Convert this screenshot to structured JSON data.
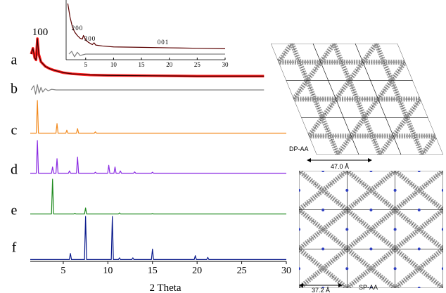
{
  "chart_data": {
    "type": "line",
    "xlabel": "2 Theta",
    "xlim": [
      1.3,
      30
    ],
    "xticks": [
      5,
      10,
      15,
      20,
      25,
      30
    ],
    "annotations": [
      "100"
    ],
    "series": [
      {
        "name": "a",
        "color": "#3a0000",
        "outline_color": "#ff2020",
        "x": [
          1.4,
          1.6,
          1.8,
          1.95,
          2.1,
          2.25,
          2.5,
          3,
          3.5,
          4,
          5,
          6,
          8,
          10,
          15,
          20,
          27.5
        ],
        "values": [
          60,
          75,
          50,
          45,
          100,
          60,
          40,
          28,
          22,
          18,
          12,
          9,
          6,
          5,
          4,
          3,
          3
        ]
      },
      {
        "name": "b",
        "color": "#808080",
        "x": [
          1.4,
          1.7,
          1.9,
          2.1,
          2.3,
          2.5,
          2.7,
          3,
          3.3,
          3.7,
          4.2,
          27.5
        ],
        "values": [
          0,
          20,
          -20,
          25,
          -15,
          12,
          -10,
          6,
          -4,
          3,
          0,
          0
        ]
      },
      {
        "name": "c",
        "color": "#f28a1e",
        "x": [
          1.3,
          1.98,
          2.1,
          2.22,
          4.18,
          4.3,
          4.42,
          5.28,
          5.4,
          5.52,
          6.48,
          6.6,
          6.72,
          8.48,
          8.6,
          8.72,
          30
        ],
        "values": [
          1,
          1,
          100,
          1,
          1,
          30,
          1,
          1,
          10,
          1,
          1,
          15,
          1,
          1,
          5,
          1,
          1
        ]
      },
      {
        "name": "d",
        "color": "#8a2be2",
        "x": [
          1.3,
          1.98,
          2.1,
          2.22,
          3.68,
          3.8,
          3.92,
          4.18,
          4.3,
          4.42,
          5.58,
          5.7,
          5.82,
          6.48,
          6.6,
          6.72,
          8.48,
          8.6,
          8.72,
          9.98,
          10.1,
          10.22,
          10.68,
          10.8,
          10.92,
          11.28,
          11.4,
          11.52,
          12.88,
          13,
          13.12,
          14.88,
          15,
          15.12,
          30
        ],
        "values": [
          1,
          1,
          100,
          1,
          1,
          20,
          1,
          1,
          45,
          1,
          1,
          8,
          1,
          1,
          50,
          1,
          1,
          4,
          1,
          1,
          25,
          1,
          1,
          20,
          1,
          1,
          8,
          1,
          1,
          5,
          1,
          1,
          4,
          1,
          1
        ]
      },
      {
        "name": "e",
        "color": "#1f8a1f",
        "x": [
          1.3,
          3.68,
          3.8,
          3.92,
          6.18,
          6.3,
          6.42,
          7.38,
          7.5,
          7.62,
          11.18,
          11.3,
          11.42,
          14.88,
          15,
          15.12,
          30
        ],
        "values": [
          1,
          1,
          100,
          1,
          1,
          3,
          1,
          1,
          18,
          1,
          1,
          4,
          1,
          1,
          2,
          1,
          1
        ]
      },
      {
        "name": "f",
        "color": "#0a1a8c",
        "x": [
          1.3,
          5.68,
          5.8,
          5.92,
          7.38,
          7.5,
          7.62,
          10.38,
          10.5,
          10.62,
          11.18,
          11.3,
          11.42,
          12.68,
          12.8,
          12.92,
          14.88,
          15,
          15.12,
          19.68,
          19.8,
          19.92,
          21.08,
          21.2,
          21.32,
          30
        ],
        "values": [
          1,
          1,
          15,
          1,
          1,
          100,
          1,
          1,
          100,
          1,
          1,
          5,
          1,
          1,
          5,
          1,
          1,
          25,
          1,
          1,
          10,
          1,
          1,
          6,
          1,
          1
        ]
      }
    ],
    "inset": {
      "type": "line",
      "xlim": [
        1.5,
        30
      ],
      "xticks": [
        5,
        10,
        15,
        20,
        25,
        30
      ],
      "annotations": [
        "200",
        "300",
        "001"
      ],
      "series": [
        {
          "color": "#5a0000",
          "x": [
            1.8,
            2.2,
            2.6,
            3,
            3.5,
            4,
            4.4,
            4.6,
            5,
            5.5,
            6.2,
            6.5,
            6.8,
            8,
            10,
            15,
            20,
            25,
            30
          ],
          "values": [
            100,
            70,
            50,
            38,
            30,
            24,
            22,
            30,
            20,
            15,
            10,
            14,
            9,
            7,
            5,
            4,
            3,
            2,
            1
          ]
        },
        {
          "color": "#808080",
          "x": [
            2,
            2.5,
            3,
            3.5,
            4,
            5,
            30
          ],
          "values": [
            0,
            6,
            -6,
            4,
            -3,
            0,
            0
          ]
        }
      ]
    }
  },
  "structures": [
    {
      "label": "DP-AA",
      "dimension": "47.0 Å"
    },
    {
      "label": "SP-AA",
      "dimension": "37.2 Å"
    }
  ]
}
